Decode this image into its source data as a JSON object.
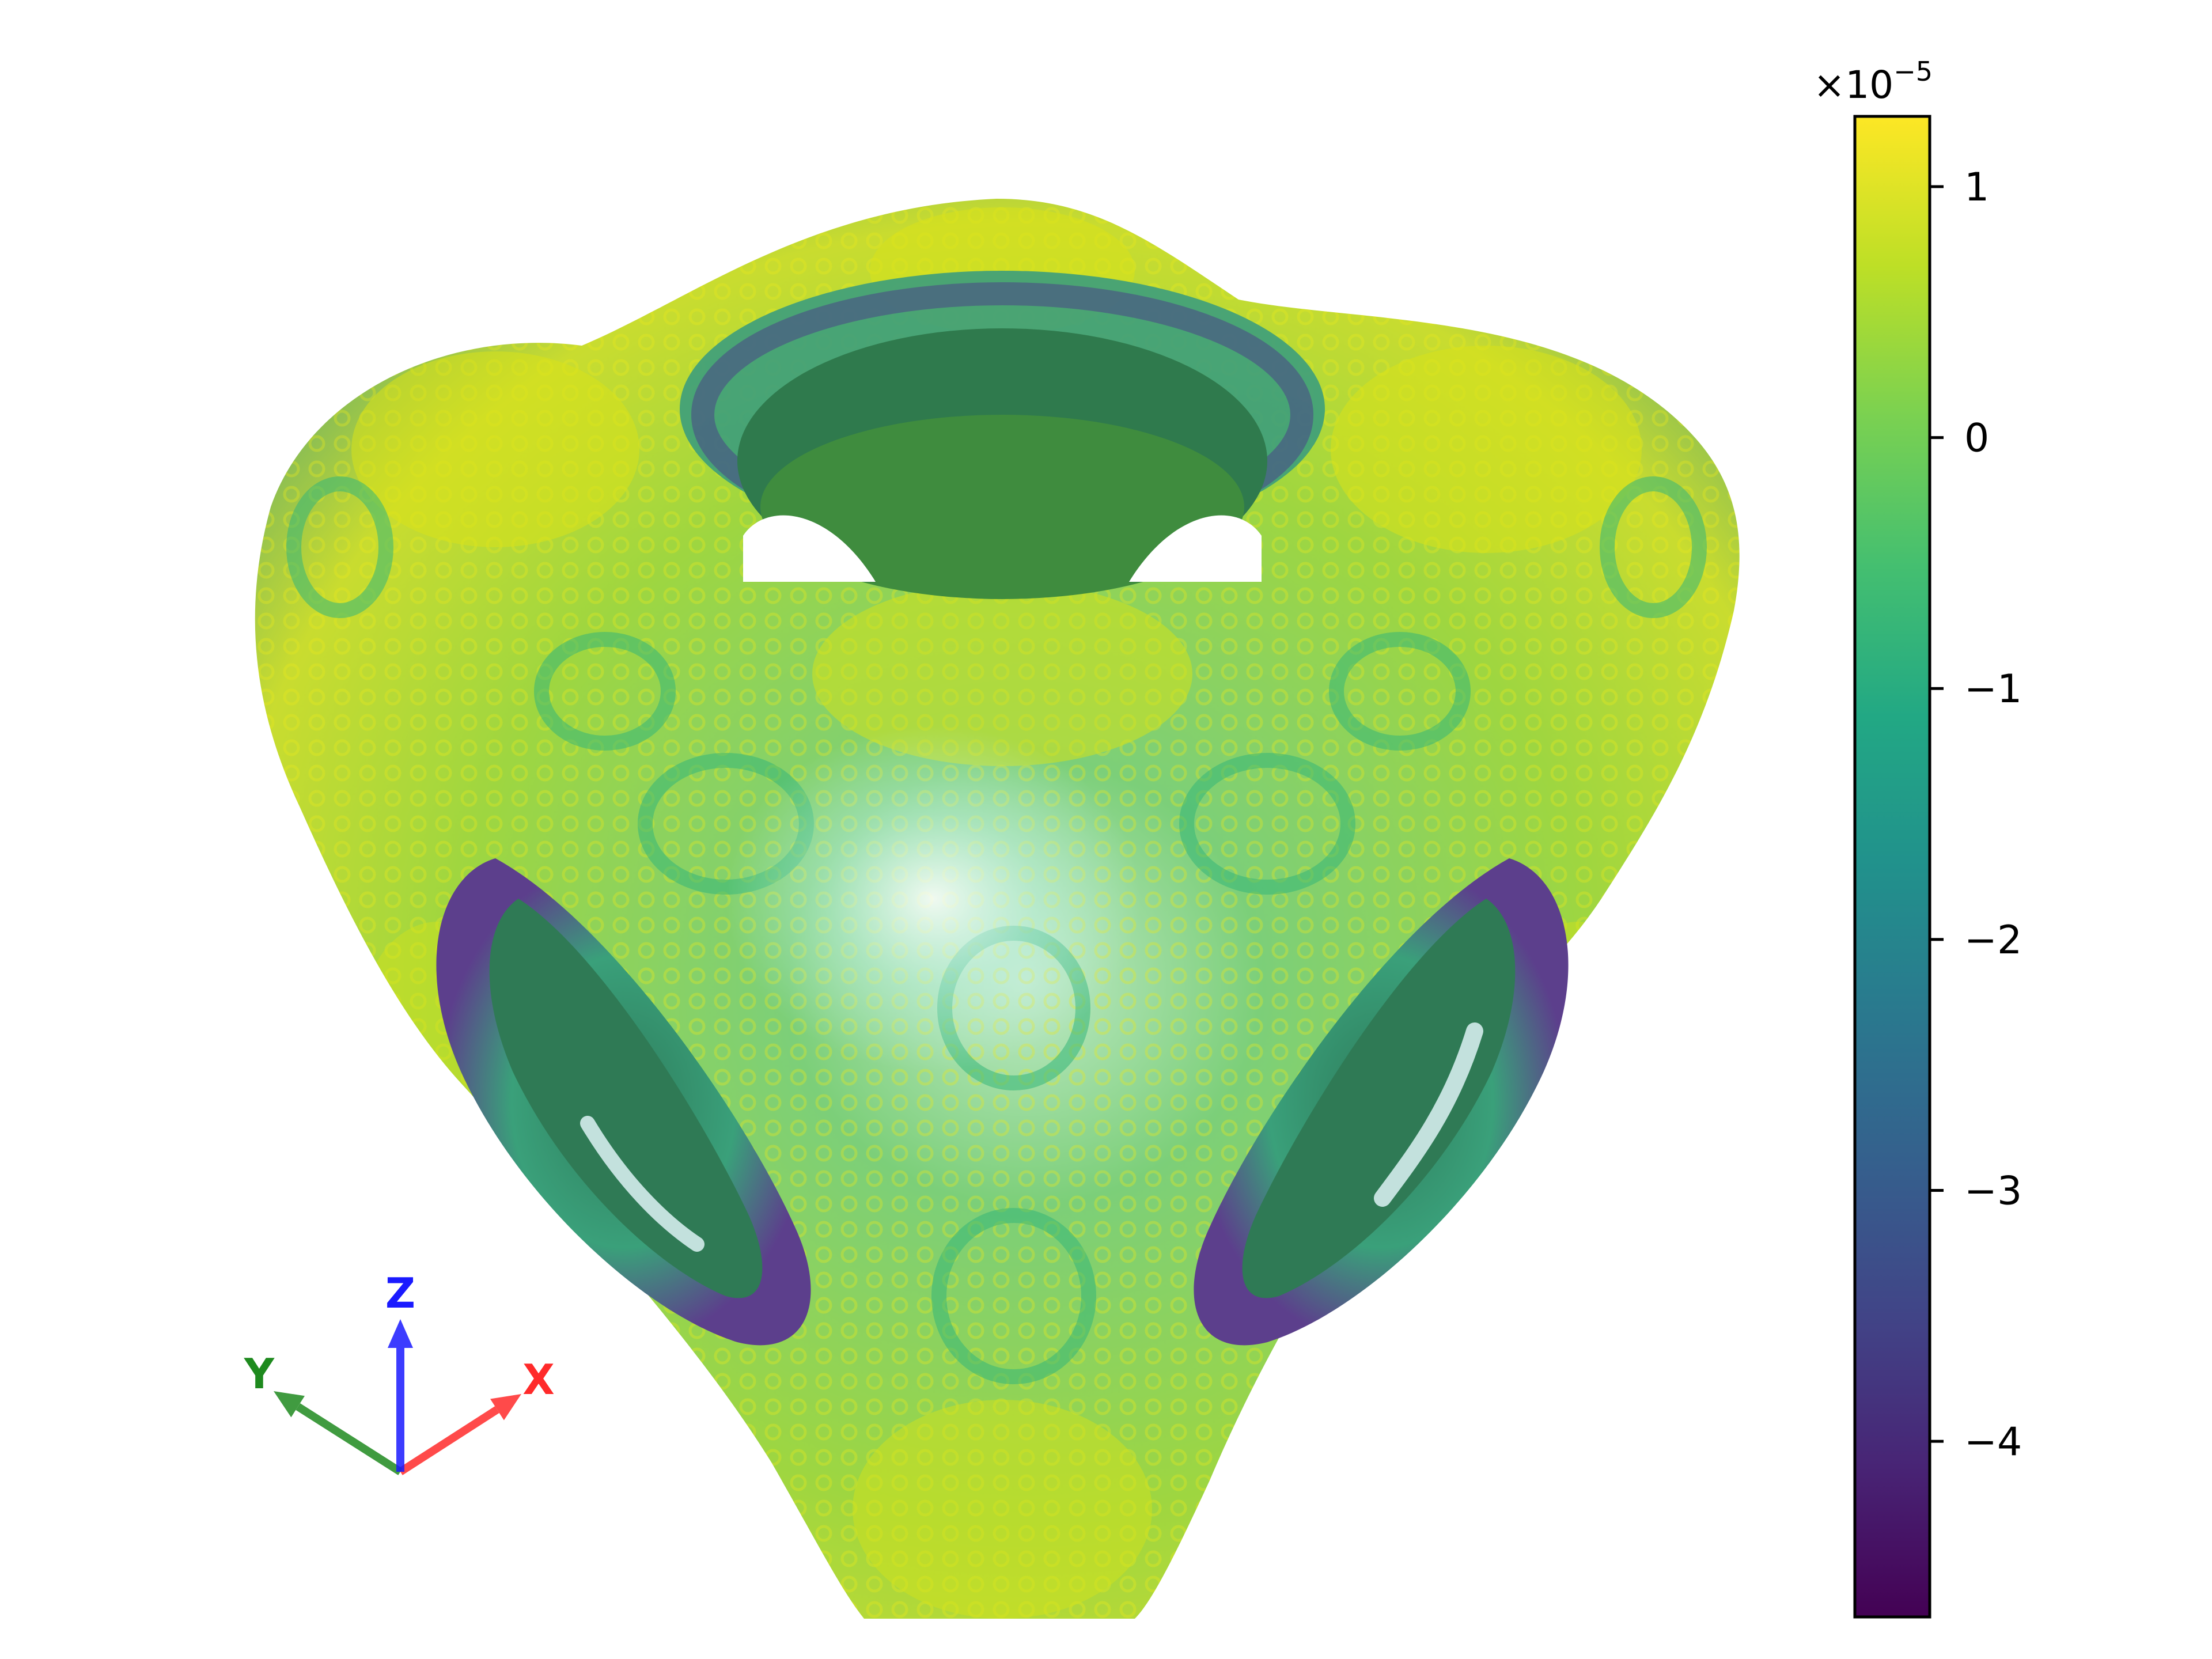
{
  "chart_data": {
    "type": "heatmap",
    "title": "",
    "subtitle": "",
    "plot_kind": "3D isosurface rendered with a scalar color field",
    "colormap": "viridis",
    "colorbar": {
      "orientation": "vertical",
      "placement": "right",
      "multiplier_label": "×10",
      "multiplier_exponent": "−5",
      "range": [
        -4.7,
        1.28
      ],
      "ticks": [
        {
          "value": 1,
          "label": "1"
        },
        {
          "value": 0,
          "label": "0"
        },
        {
          "value": -1,
          "label": "−1"
        },
        {
          "value": -2,
          "label": "−2"
        },
        {
          "value": -3,
          "label": "−3"
        },
        {
          "value": -4,
          "label": "−4"
        }
      ]
    },
    "orientation_axes": {
      "placement": "bottom-left",
      "x": {
        "label": "X",
        "color": "#ff2a2a"
      },
      "y": {
        "label": "Y",
        "color": "#1e8a1e"
      },
      "z": {
        "label": "Z",
        "color": "#1a1aff"
      }
    },
    "grid": false,
    "surface": {
      "shape": "tetrahedral shell with four tunnel openings",
      "dominant_colors": [
        "#d2e21b",
        "#8fd744",
        "#35b779",
        "#21918c",
        "#31688e",
        "#443983"
      ]
    }
  }
}
